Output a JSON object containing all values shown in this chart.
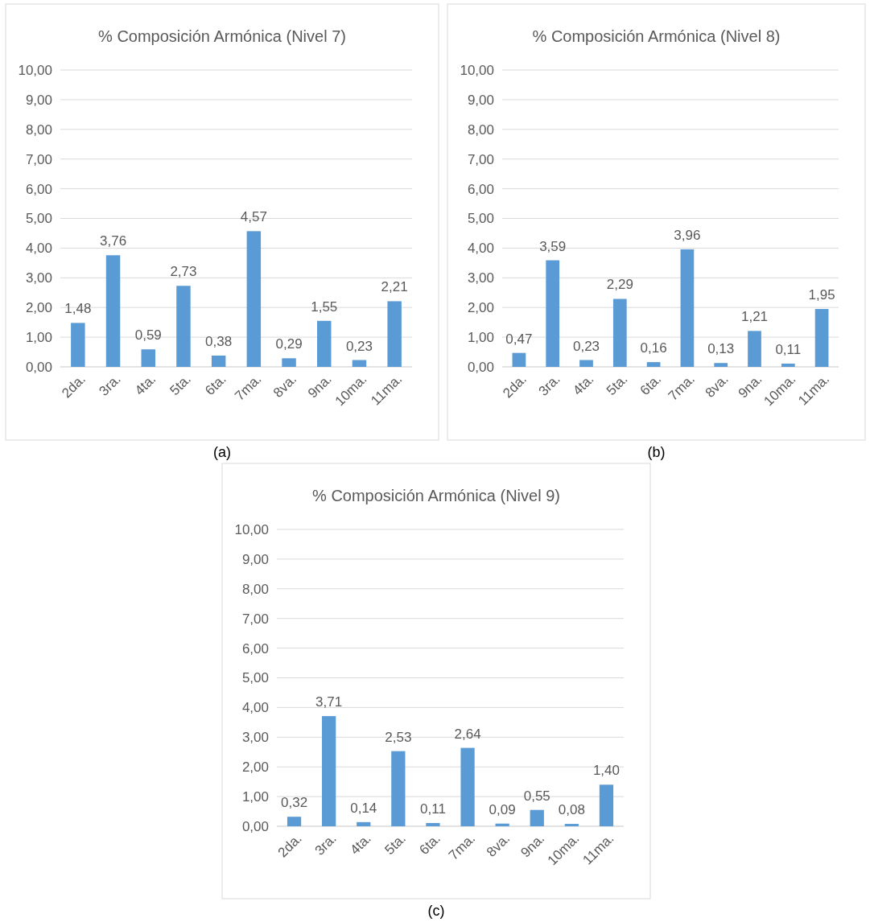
{
  "chart_data": [
    {
      "type": "bar",
      "title": "% Composición Armónica (Nivel 7)",
      "categories": [
        "2da.",
        "3ra.",
        "4ta.",
        "5ta.",
        "6ta.",
        "7ma.",
        "8va.",
        "9na.",
        "10ma.",
        "11ma."
      ],
      "values": [
        1.48,
        3.76,
        0.59,
        2.73,
        0.38,
        4.57,
        0.29,
        1.55,
        0.23,
        2.21
      ],
      "value_labels": [
        "1,48",
        "3,76",
        "0,59",
        "2,73",
        "0,38",
        "4,57",
        "0,29",
        "1,55",
        "0,23",
        "2,21"
      ],
      "color": "#5b9bd5",
      "ylim": [
        0,
        10
      ],
      "yticks": [
        {
          "value": 0,
          "label": "0,00"
        },
        {
          "value": 1,
          "label": "1,00"
        },
        {
          "value": 2,
          "label": "2,00"
        },
        {
          "value": 3,
          "label": "3,00"
        },
        {
          "value": 4,
          "label": "4,00"
        },
        {
          "value": 5,
          "label": "5,00"
        },
        {
          "value": 6,
          "label": "6,00"
        },
        {
          "value": 7,
          "label": "7,00"
        },
        {
          "value": 8,
          "label": "8,00"
        },
        {
          "value": 9,
          "label": "9,00"
        },
        {
          "value": 10,
          "label": "10,00"
        }
      ],
      "grid": "y",
      "annotations": [
        "(a)"
      ]
    },
    {
      "type": "bar",
      "title": "% Composición Armónica (Nivel 8)",
      "categories": [
        "2da.",
        "3ra.",
        "4ta.",
        "5ta.",
        "6ta.",
        "7ma.",
        "8va.",
        "9na.",
        "10ma.",
        "11ma."
      ],
      "values": [
        0.47,
        3.59,
        0.23,
        2.29,
        0.16,
        3.96,
        0.13,
        1.21,
        0.11,
        1.95
      ],
      "value_labels": [
        "0,47",
        "3,59",
        "0,23",
        "2,29",
        "0,16",
        "3,96",
        "0,13",
        "1,21",
        "0,11",
        "1,95"
      ],
      "color": "#5b9bd5",
      "ylim": [
        0,
        10
      ],
      "yticks": [
        {
          "value": 0,
          "label": "0,00"
        },
        {
          "value": 1,
          "label": "1,00"
        },
        {
          "value": 2,
          "label": "2,00"
        },
        {
          "value": 3,
          "label": "3,00"
        },
        {
          "value": 4,
          "label": "4,00"
        },
        {
          "value": 5,
          "label": "5,00"
        },
        {
          "value": 6,
          "label": "6,00"
        },
        {
          "value": 7,
          "label": "7,00"
        },
        {
          "value": 8,
          "label": "8,00"
        },
        {
          "value": 9,
          "label": "9,00"
        },
        {
          "value": 10,
          "label": "10,00"
        }
      ],
      "grid": "y",
      "annotations": [
        "(b)"
      ]
    },
    {
      "type": "bar",
      "title": "% Composición Armónica (Nivel 9)",
      "categories": [
        "2da.",
        "3ra.",
        "4ta.",
        "5ta.",
        "6ta.",
        "7ma.",
        "8va.",
        "9na.",
        "10ma.",
        "11ma."
      ],
      "values": [
        0.32,
        3.71,
        0.14,
        2.53,
        0.11,
        2.64,
        0.09,
        0.55,
        0.08,
        1.4
      ],
      "value_labels": [
        "0,32",
        "3,71",
        "0,14",
        "2,53",
        "0,11",
        "2,64",
        "0,09",
        "0,55",
        "0,08",
        "1,40"
      ],
      "color": "#5b9bd5",
      "ylim": [
        0,
        10
      ],
      "yticks": [
        {
          "value": 0,
          "label": "0,00"
        },
        {
          "value": 1,
          "label": "1,00"
        },
        {
          "value": 2,
          "label": "2,00"
        },
        {
          "value": 3,
          "label": "3,00"
        },
        {
          "value": 4,
          "label": "4,00"
        },
        {
          "value": 5,
          "label": "5,00"
        },
        {
          "value": 6,
          "label": "6,00"
        },
        {
          "value": 7,
          "label": "7,00"
        },
        {
          "value": 8,
          "label": "8,00"
        },
        {
          "value": 9,
          "label": "9,00"
        },
        {
          "value": 10,
          "label": "10,00"
        }
      ],
      "grid": "y",
      "annotations": [
        "(c)"
      ]
    }
  ]
}
